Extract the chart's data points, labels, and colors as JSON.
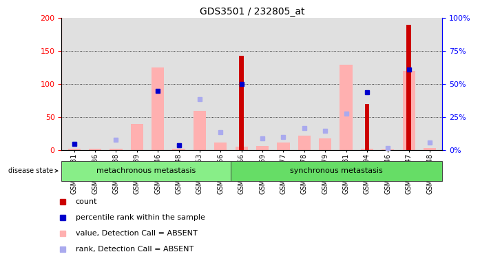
{
  "title": "GDS3501 / 232805_at",
  "samples": [
    "GSM277231",
    "GSM277236",
    "GSM277238",
    "GSM277239",
    "GSM277246",
    "GSM277248",
    "GSM277253",
    "GSM277256",
    "GSM277466",
    "GSM277469",
    "GSM277477",
    "GSM277478",
    "GSM277479",
    "GSM277481",
    "GSM277494",
    "GSM277646",
    "GSM277647",
    "GSM277648"
  ],
  "count_red": [
    0,
    0,
    0,
    0,
    0,
    0,
    0,
    0,
    143,
    0,
    0,
    0,
    0,
    0,
    70,
    0,
    190,
    0
  ],
  "percentile_blue": [
    5,
    0,
    0,
    0,
    45,
    4,
    0,
    0,
    50,
    0,
    0,
    0,
    0,
    0,
    44,
    0,
    61,
    0
  ],
  "value_absent_pink": [
    3,
    3,
    3,
    40,
    125,
    3,
    60,
    12,
    6,
    7,
    12,
    22,
    18,
    130,
    3,
    1,
    120,
    4
  ],
  "rank_absent_lblue": [
    5,
    0,
    8,
    0,
    0,
    4,
    39,
    14,
    0,
    9,
    10,
    17,
    15,
    28,
    0,
    2,
    0,
    6
  ],
  "group1_label": "metachronous metastasis",
  "group2_label": "synchronous metastasis",
  "group1_count": 8,
  "group2_count": 10,
  "ylim_left": [
    0,
    200
  ],
  "ylim_right": [
    0,
    100
  ],
  "yticks_left": [
    0,
    50,
    100,
    150,
    200
  ],
  "yticks_right": [
    0,
    25,
    50,
    75,
    100
  ],
  "ytick_labels_right": [
    "0%",
    "25%",
    "50%",
    "75%",
    "100%"
  ],
  "color_red": "#cc0000",
  "color_blue": "#0000cc",
  "color_pink": "#ffb0b0",
  "color_lblue": "#aaaaee",
  "color_group1": "#88ee88",
  "color_group2": "#66dd66",
  "bg_plot": "#e0e0e0",
  "bg_figure": "#ffffff"
}
